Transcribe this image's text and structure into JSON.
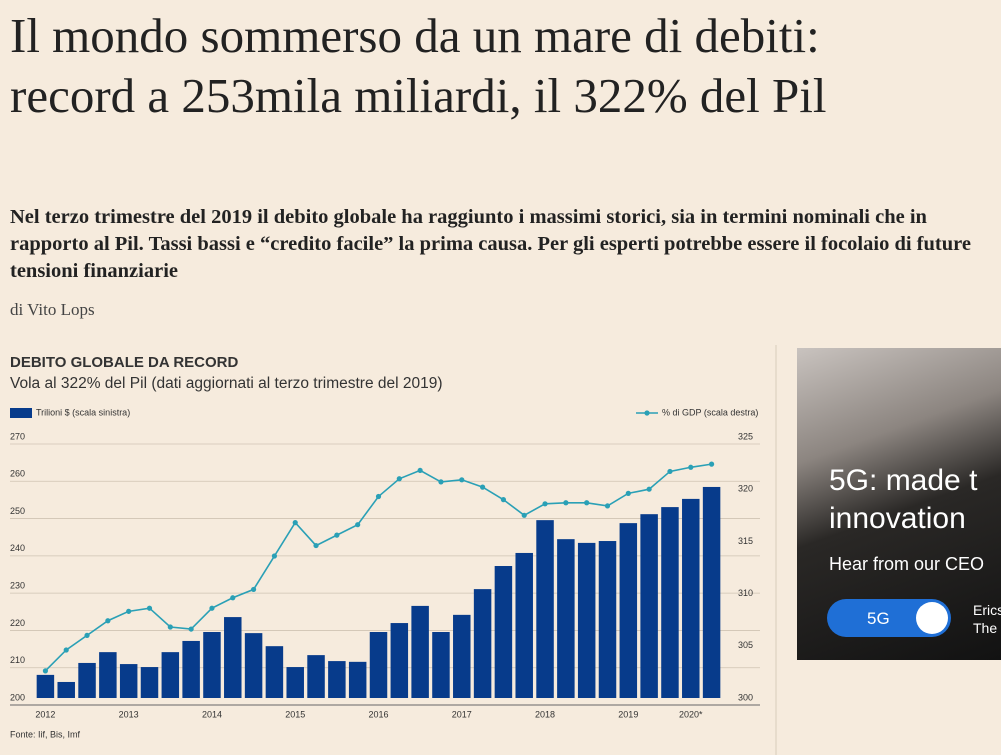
{
  "header": {
    "title": "Il mondo sommerso da un mare di debiti: record a 253mila miliardi, il 322% del Pil",
    "subtitle": "Nel terzo trimestre del 2019 il debito globale ha raggiunto i massimi storici, sia in termini nominali che in rapporto al Pil. Tassi bassi e “credito facile” la prima causa. Per gli esperti potrebbe essere il focolaio di future tensioni finanziarie",
    "byline": "di Vito Lops"
  },
  "chart_data": {
    "type": "bar-line",
    "title": "DEBITO GLOBALE DA RECORD",
    "subtitle": "Vola al 322% del Pil (dati aggiornati al terzo trimestre del 2019)",
    "source": "Fonte: Iif, Bis, Imf",
    "categories": [
      "2012",
      null,
      null,
      null,
      "2013",
      null,
      null,
      null,
      "2014",
      null,
      null,
      null,
      "2015",
      null,
      null,
      null,
      "2016",
      null,
      null,
      null,
      "2017",
      null,
      null,
      null,
      "2018",
      null,
      null,
      null,
      "2019",
      null,
      null,
      "2020*",
      null
    ],
    "series": [
      {
        "name": "Trilioni $ (scala sinistra)",
        "color": "#073b8b",
        "type": "bar",
        "values": [
          206.2,
          204.3,
          209.4,
          212.3,
          209.1,
          208.3,
          212.3,
          215.3,
          217.7,
          221.7,
          217.4,
          213.9,
          208.3,
          211.5,
          209.9,
          209.7,
          217.7,
          220.1,
          224.7,
          217.7,
          222.3,
          229.2,
          235.4,
          238.9,
          247.7,
          242.6,
          241.6,
          242.1,
          246.9,
          249.3,
          251.2,
          253.4,
          256.6
        ]
      },
      {
        "name": "% di GDP (scala destra)",
        "color": "#2aa0b6",
        "type": "line",
        "axis": "y2",
        "values": [
          302.6,
          304.6,
          306.0,
          307.4,
          308.3,
          308.6,
          306.8,
          306.6,
          308.6,
          309.6,
          310.4,
          313.6,
          316.8,
          314.6,
          315.6,
          316.6,
          319.3,
          321.0,
          321.8,
          320.7,
          320.9,
          320.2,
          319.0,
          317.5,
          318.6,
          318.7,
          318.7,
          318.4,
          319.6,
          320.0,
          321.7,
          322.1,
          322.4
        ]
      }
    ],
    "ylim": [
      200,
      270
    ],
    "yticks": [
      200,
      210,
      220,
      230,
      240,
      250,
      260,
      270
    ],
    "y2lim": [
      300,
      325
    ],
    "y2ticks": [
      300,
      305,
      310,
      315,
      320,
      325
    ],
    "grid": true
  },
  "ad": {
    "headline_1": "5G: made t",
    "headline_2": "innovation",
    "text": "Hear from our CEO",
    "toggle": "5G",
    "brand_1": "Erics",
    "brand_2": "The"
  }
}
